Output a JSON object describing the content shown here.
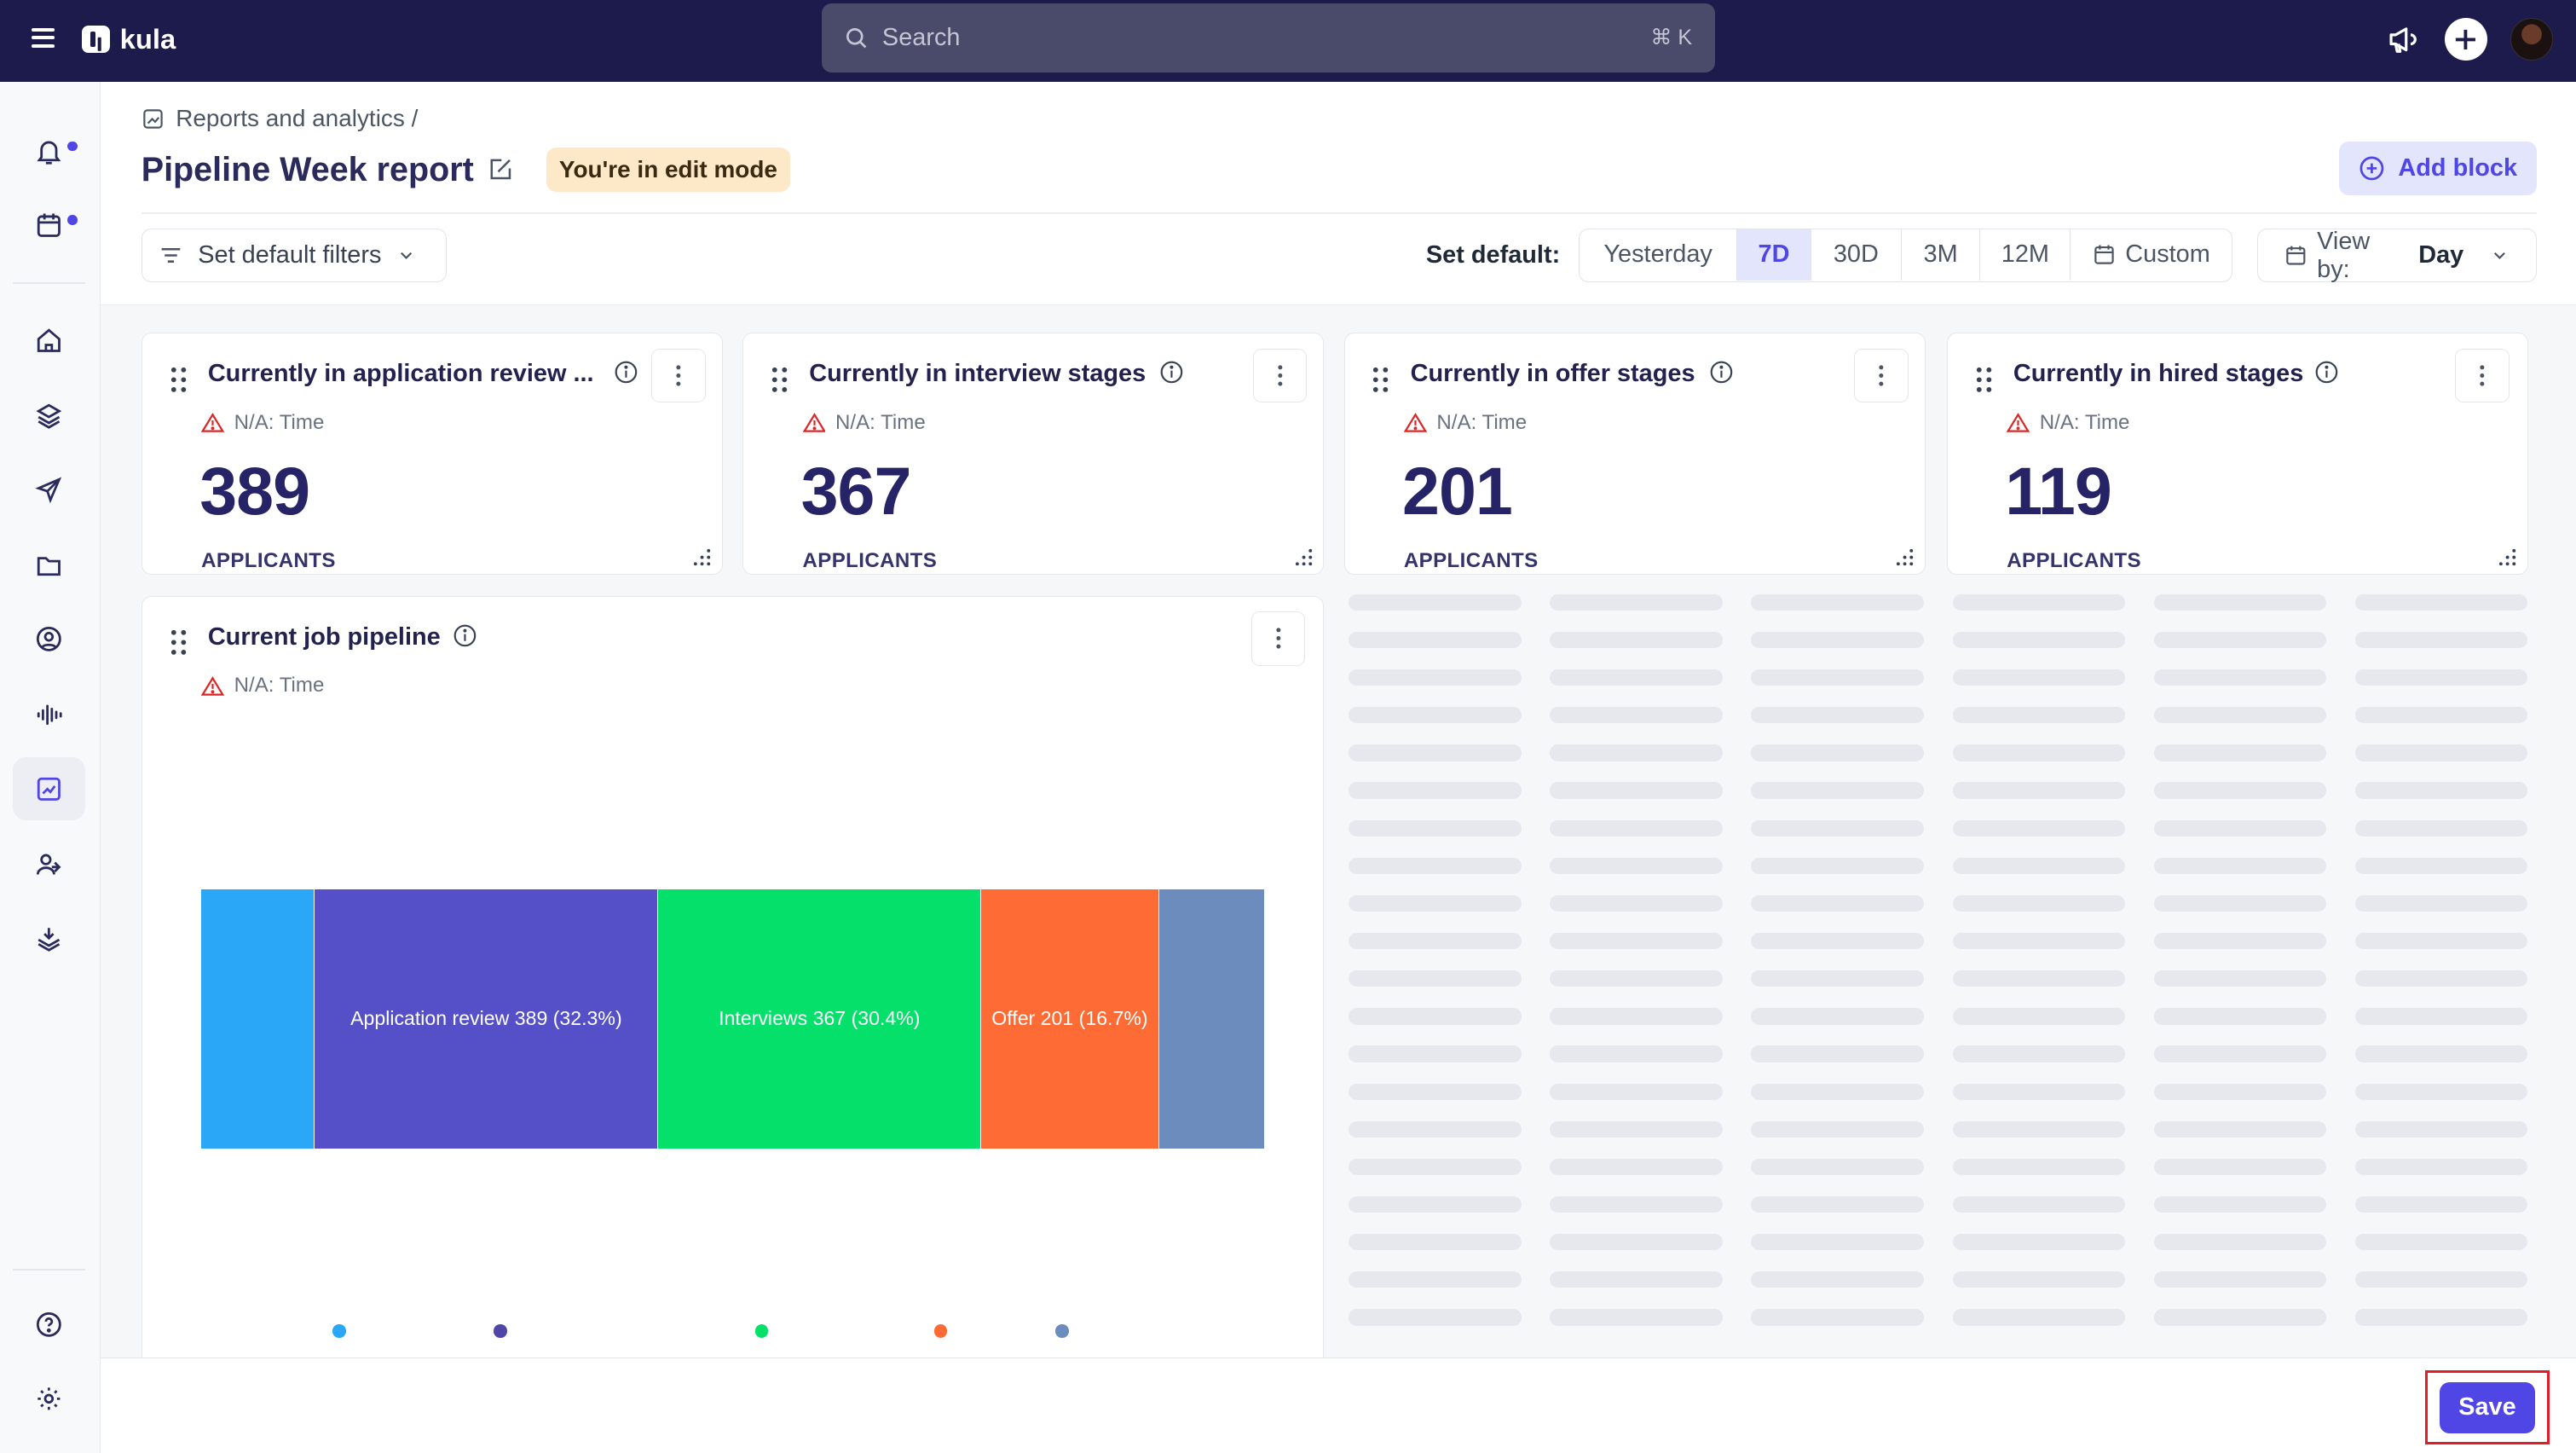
{
  "app": {
    "name": "kula"
  },
  "search": {
    "placeholder": "Search",
    "shortcut": "⌘ K"
  },
  "breadcrumb": {
    "label": "Reports and analytics /"
  },
  "page": {
    "title": "Pipeline Week report",
    "edit_badge": "You're in edit mode"
  },
  "toolbar": {
    "add_block_label": "Add block",
    "filters_label": "Set default filters",
    "set_default_label": "Set default:",
    "ranges": [
      "Yesterday",
      "7D",
      "30D",
      "3M",
      "12M",
      "Custom"
    ],
    "active_range": "7D",
    "view_by_label": "View by:",
    "view_by_value": "Day"
  },
  "metric_cards": [
    {
      "title": "Currently in application review ...",
      "warning": "N/A: Time",
      "value": "389",
      "unit": "APPLICANTS"
    },
    {
      "title": "Currently in interview stages",
      "warning": "N/A: Time",
      "value": "367",
      "unit": "APPLICANTS"
    },
    {
      "title": "Currently in offer stages",
      "warning": "N/A: Time",
      "value": "201",
      "unit": "APPLICANTS"
    },
    {
      "title": "Currently in hired stages",
      "warning": "N/A: Time",
      "value": "119",
      "unit": "APPLICANTS"
    }
  ],
  "pipeline_card": {
    "title": "Current job pipeline",
    "warning": "N/A: Time"
  },
  "chart_data": {
    "type": "bar",
    "orientation": "horizontal-stacked",
    "series": [
      {
        "label": "",
        "share_pct": 10.7,
        "color": "#2aa8f7"
      },
      {
        "label": "Application review 389 (32.3%)",
        "value": 389,
        "share_pct": 32.3,
        "color": "#5550c8"
      },
      {
        "label": "Interviews 367 (30.4%)",
        "value": 367,
        "share_pct": 30.4,
        "color": "#04e06a"
      },
      {
        "label": "Offer 201 (16.7%)",
        "value": 201,
        "share_pct": 16.7,
        "color": "#fe6b35"
      },
      {
        "label": "",
        "share_pct": 9.9,
        "color": "#6c8cbd"
      }
    ],
    "legend_colors": [
      "#2aa8f7",
      "#4f46a8",
      "#04e06a",
      "#fe6b35",
      "#6c8cbd"
    ]
  },
  "footer": {
    "save_label": "Save"
  },
  "colors": {
    "accent": "#4f46e5",
    "topbar": "#1c1b4b",
    "edit_badge_bg": "#fde8c8"
  }
}
